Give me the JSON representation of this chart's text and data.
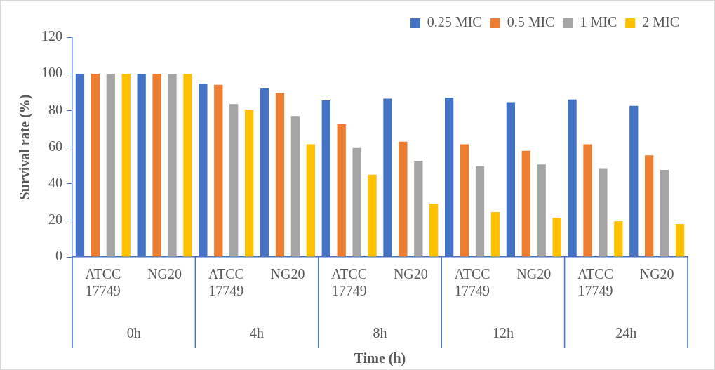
{
  "chart_data": {
    "type": "bar",
    "xlabel": "Time (h)",
    "ylabel": "Survival rate (%)",
    "categories": [
      "ATCC 17749",
      "NG20",
      "ATCC 17749",
      "NG20",
      "ATCC 17749",
      "NG20",
      "ATCC 17749",
      "NG20",
      "ATCC 17749",
      "NG20"
    ],
    "annotations": [
      "0h",
      "4h",
      "8h",
      "12h",
      "24h"
    ],
    "series": [
      {
        "name": "0.25 MIC",
        "color": "#4472c4",
        "values": [
          100,
          100,
          94.5,
          92,
          85.5,
          86.5,
          87,
          84.5,
          86,
          82.5
        ]
      },
      {
        "name": "0.5 MIC",
        "color": "#ed7d31",
        "values": [
          100,
          100,
          94,
          89.5,
          72.5,
          63,
          61.5,
          58,
          61.5,
          55.5
        ]
      },
      {
        "name": "1 MIC",
        "color": "#a5a5a5",
        "values": [
          100,
          100,
          83.5,
          77,
          59.5,
          52.5,
          49.5,
          50.5,
          48.5,
          47.5
        ]
      },
      {
        "name": "2 MIC",
        "color": "#ffc000",
        "values": [
          100,
          100,
          80.5,
          61.5,
          45,
          29,
          24.5,
          21.5,
          19.5,
          18
        ]
      }
    ],
    "ylim": [
      0,
      120
    ],
    "yticks": [
      0,
      20,
      40,
      60,
      80,
      100,
      120
    ],
    "grid": false,
    "legend": "top right"
  }
}
